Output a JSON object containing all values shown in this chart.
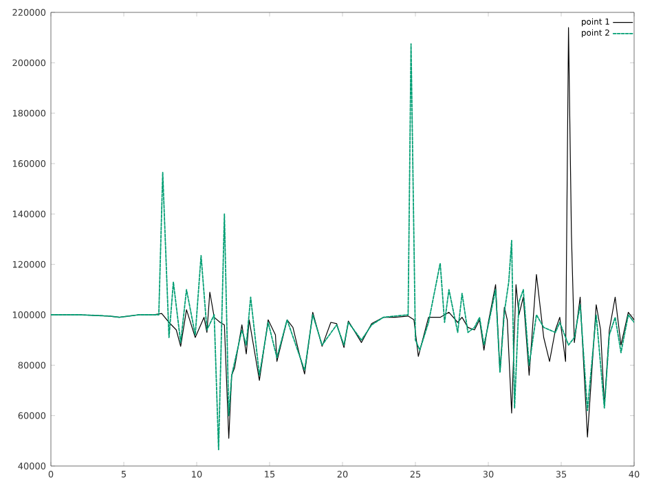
{
  "chart_data": {
    "type": "line",
    "xlim": [
      0,
      40
    ],
    "ylim": [
      40000,
      220000
    ],
    "xticks": [
      0,
      5,
      10,
      15,
      20,
      25,
      30,
      35,
      40
    ],
    "yticks": [
      40000,
      60000,
      80000,
      100000,
      120000,
      140000,
      160000,
      180000,
      200000,
      220000
    ],
    "legend": "top right",
    "marker": "none",
    "series": [
      {
        "name": "point 1",
        "color": "#000000",
        "line_style": "solid",
        "x": [
          0,
          2,
          4,
          4.7,
          6,
          7,
          7.6,
          8.1,
          8.6,
          8.9,
          9.3,
          9.9,
          10.5,
          10.7,
          10.9,
          11.2,
          11.6,
          11.9,
          12.2,
          12.4,
          12.6,
          13.1,
          13.4,
          13.6,
          14.3,
          14.9,
          15.4,
          15.5,
          16.2,
          16.6,
          17.1,
          17.4,
          17.96,
          18.6,
          19.2,
          19.6,
          20.1,
          20.4,
          21.3,
          22.0,
          22.8,
          23.6,
          24.5,
          24.9,
          25.2,
          25.9,
          26.7,
          27.3,
          27.9,
          28.2,
          28.6,
          29.05,
          29.4,
          29.7,
          30.0,
          30.5,
          30.8,
          31.1,
          31.3,
          31.6,
          31.9,
          32.1,
          32.4,
          32.8,
          33.3,
          33.8,
          34.2,
          34.6,
          34.9,
          35.3,
          35.5,
          35.7,
          35.9,
          36.3,
          36.8,
          37.4,
          37.7,
          37.96,
          38.3,
          38.7,
          39.1,
          39.6,
          40
        ],
        "values": [
          100000,
          100000,
          99500,
          99000,
          100000,
          100000,
          100500,
          97000,
          94000,
          87500,
          102000,
          91000,
          99000,
          93000,
          109000,
          99000,
          97000,
          96000,
          51000,
          76000,
          79000,
          96000,
          84500,
          98000,
          74000,
          98000,
          92000,
          81500,
          98000,
          95000,
          83000,
          76500,
          101000,
          87500,
          97000,
          96500,
          87000,
          97500,
          89000,
          96500,
          99000,
          99000,
          99500,
          98000,
          83500,
          99000,
          99000,
          101000,
          97000,
          99000,
          95000,
          94000,
          98000,
          86000,
          97000,
          112000,
          77500,
          103000,
          98000,
          61000,
          112000,
          100000,
          107000,
          76000,
          116000,
          91000,
          81500,
          94000,
          99000,
          81500,
          214000,
          132000,
          89000,
          107000,
          51500,
          104000,
          94000,
          64000,
          94000,
          107000,
          88000,
          101000,
          98000
        ]
      },
      {
        "name": "point 2",
        "color": "#009e73",
        "line_style": "dashed",
        "x": [
          0,
          2,
          4,
          4.7,
          6,
          7.4,
          7.67,
          8.1,
          8.4,
          8.9,
          9.3,
          9.9,
          10.3,
          10.7,
          11.2,
          11.5,
          11.9,
          12.2,
          12.4,
          13.1,
          13.4,
          13.7,
          14.3,
          14.9,
          15.5,
          16.2,
          17.4,
          17.96,
          18.6,
          19.6,
          20.1,
          20.4,
          21.3,
          22.0,
          22.8,
          23.6,
          24.5,
          24.7,
          25.0,
          25.3,
          25.9,
          26.7,
          27.0,
          27.3,
          27.9,
          28.2,
          28.6,
          29.05,
          29.4,
          29.7,
          30.0,
          30.5,
          30.8,
          31.1,
          31.4,
          31.6,
          31.8,
          32.1,
          32.4,
          32.8,
          33.3,
          33.8,
          34.6,
          34.9,
          35.5,
          35.9,
          36.3,
          36.8,
          37.4,
          37.96,
          38.3,
          38.7,
          39.1,
          39.6,
          40
        ],
        "values": [
          100000,
          100000,
          99500,
          99000,
          100000,
          100000,
          156500,
          91000,
          113000,
          89000,
          110000,
          92000,
          123500,
          94000,
          100000,
          46500,
          140000,
          60000,
          76000,
          94000,
          88000,
          107000,
          76000,
          97000,
          83000,
          98000,
          78000,
          100000,
          88000,
          96000,
          88000,
          97000,
          90000,
          96000,
          99000,
          99500,
          100000,
          207500,
          90000,
          86000,
          97000,
          120500,
          97000,
          110000,
          93000,
          108500,
          93000,
          95000,
          99000,
          88000,
          96000,
          110000,
          77000,
          101000,
          113000,
          129500,
          63000,
          105000,
          110000,
          80000,
          100000,
          95000,
          93000,
          97000,
          88000,
          91000,
          104000,
          62000,
          100000,
          63000,
          92000,
          99000,
          85000,
          100000,
          97000
        ]
      }
    ]
  }
}
